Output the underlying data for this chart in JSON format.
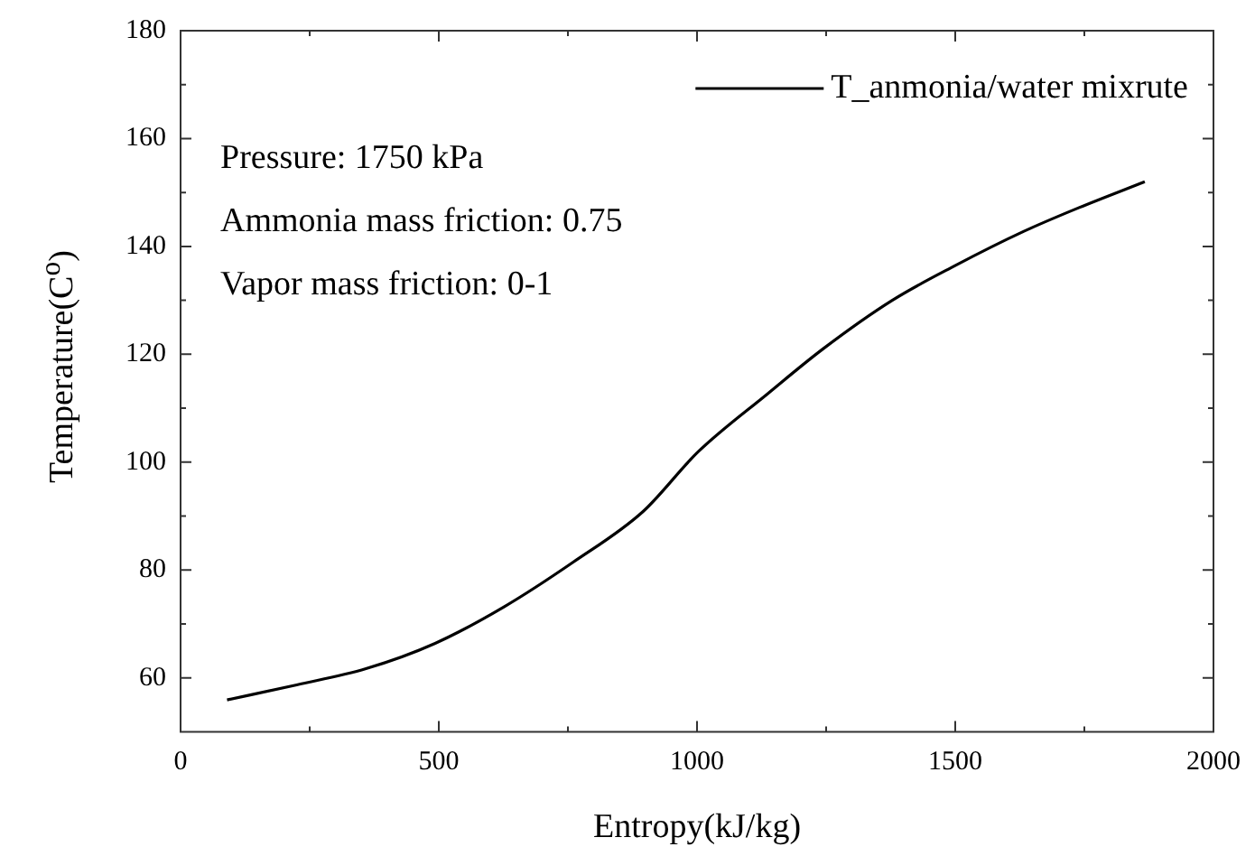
{
  "chart_data": {
    "type": "line",
    "xlabel": "Entropy(kJ/kg)",
    "ylabel": "Temperature(C$^{o}$)",
    "annotations": [
      "Pressure: 1750 kPa",
      "Ammonia mass friction: 0.75",
      "Vapor mass friction: 0-1"
    ],
    "legend": "top right",
    "marker": "none",
    "line_style": "solid",
    "xlim": [
      0,
      2000
    ],
    "xticks": [
      0,
      {
        "value": 250,
        "label": null
      },
      500,
      {
        "value": 750,
        "label": null
      },
      1000,
      {
        "value": 1250,
        "label": null
      },
      1500,
      {
        "value": 1750,
        "label": null
      },
      2000
    ],
    "ylim": [
      50,
      180
    ],
    "yticks": [
      60,
      {
        "value": 70,
        "label": null
      },
      80,
      {
        "value": 90,
        "label": null
      },
      100,
      {
        "value": 110,
        "label": null
      },
      120,
      {
        "value": 130,
        "label": null
      },
      140,
      {
        "value": 150,
        "label": null
      },
      160,
      {
        "value": 170,
        "label": null
      },
      180
    ],
    "series": [
      {
        "name": "T_anmonia/water mixrute",
        "color": "#000000",
        "x": [
          90,
          225,
          359,
          493,
          627,
          761,
          895,
          1002,
          1137,
          1244,
          1378,
          1499,
          1633,
          1740,
          1867
        ],
        "values": [
          55.9,
          58.7,
          61.7,
          66.4,
          73.2,
          81.5,
          90.8,
          101.9,
          112.7,
          121,
          130,
          136.4,
          142.8,
          147.2,
          152
        ]
      }
    ]
  }
}
